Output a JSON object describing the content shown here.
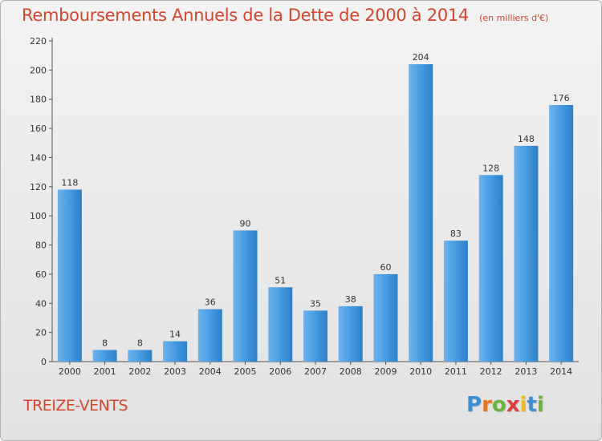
{
  "chart_data": {
    "type": "bar",
    "title": "Remboursements Annuels de la Dette de 2000 à 2014",
    "unit_note": "(en milliers d'€)",
    "xlabel": "",
    "ylabel": "",
    "categories": [
      "2000",
      "2001",
      "2002",
      "2003",
      "2004",
      "2005",
      "2006",
      "2007",
      "2008",
      "2009",
      "2010",
      "2011",
      "2012",
      "2013",
      "2014"
    ],
    "values": [
      118,
      8,
      8,
      14,
      36,
      90,
      51,
      35,
      38,
      60,
      204,
      83,
      128,
      148,
      176
    ],
    "ylim": [
      0,
      220
    ],
    "yticks": [
      0,
      20,
      40,
      60,
      80,
      100,
      120,
      140,
      160,
      180,
      200,
      220
    ],
    "grid": false,
    "legend": "none",
    "data_labels": true,
    "bar_color": "#3a8fd6"
  },
  "commune_name": "TREIZE-VENTS",
  "logo": {
    "letters": [
      "P",
      "r",
      "o",
      "x",
      "i",
      "t",
      "i"
    ],
    "colors": [
      "#3a8fd6",
      "#e8731e",
      "#6bb33c",
      "#e23c3c",
      "#f2b91a",
      "#3a8fd6",
      "#6bb33c"
    ]
  }
}
